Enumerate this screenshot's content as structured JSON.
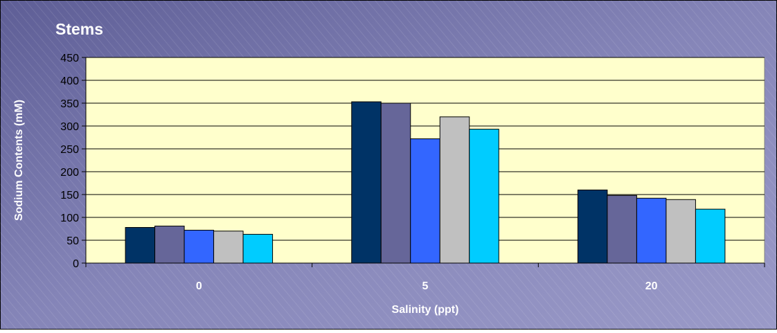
{
  "chart_data": {
    "type": "bar",
    "title": "Stems",
    "xlabel": "Salinity (ppt)",
    "ylabel": "Sodium Contents (mM)",
    "categories": [
      "0",
      "5",
      "20"
    ],
    "ylim": [
      0,
      450
    ],
    "yticks": [
      0,
      50,
      100,
      150,
      200,
      250,
      300,
      350,
      400,
      450
    ],
    "grid": true,
    "legend": "none",
    "colors": [
      "#003366",
      "#666699",
      "#3366FF",
      "#C0C0C0",
      "#00CCFF"
    ],
    "plot_bg": "#FFFFCC",
    "page_bg": "#7C7CB0",
    "series": [
      {
        "values": [
          78,
          353,
          160
        ]
      },
      {
        "values": [
          81,
          350,
          148
        ]
      },
      {
        "values": [
          72,
          272,
          142
        ]
      },
      {
        "values": [
          70,
          320,
          139
        ]
      },
      {
        "values": [
          63,
          293,
          118
        ]
      }
    ]
  }
}
